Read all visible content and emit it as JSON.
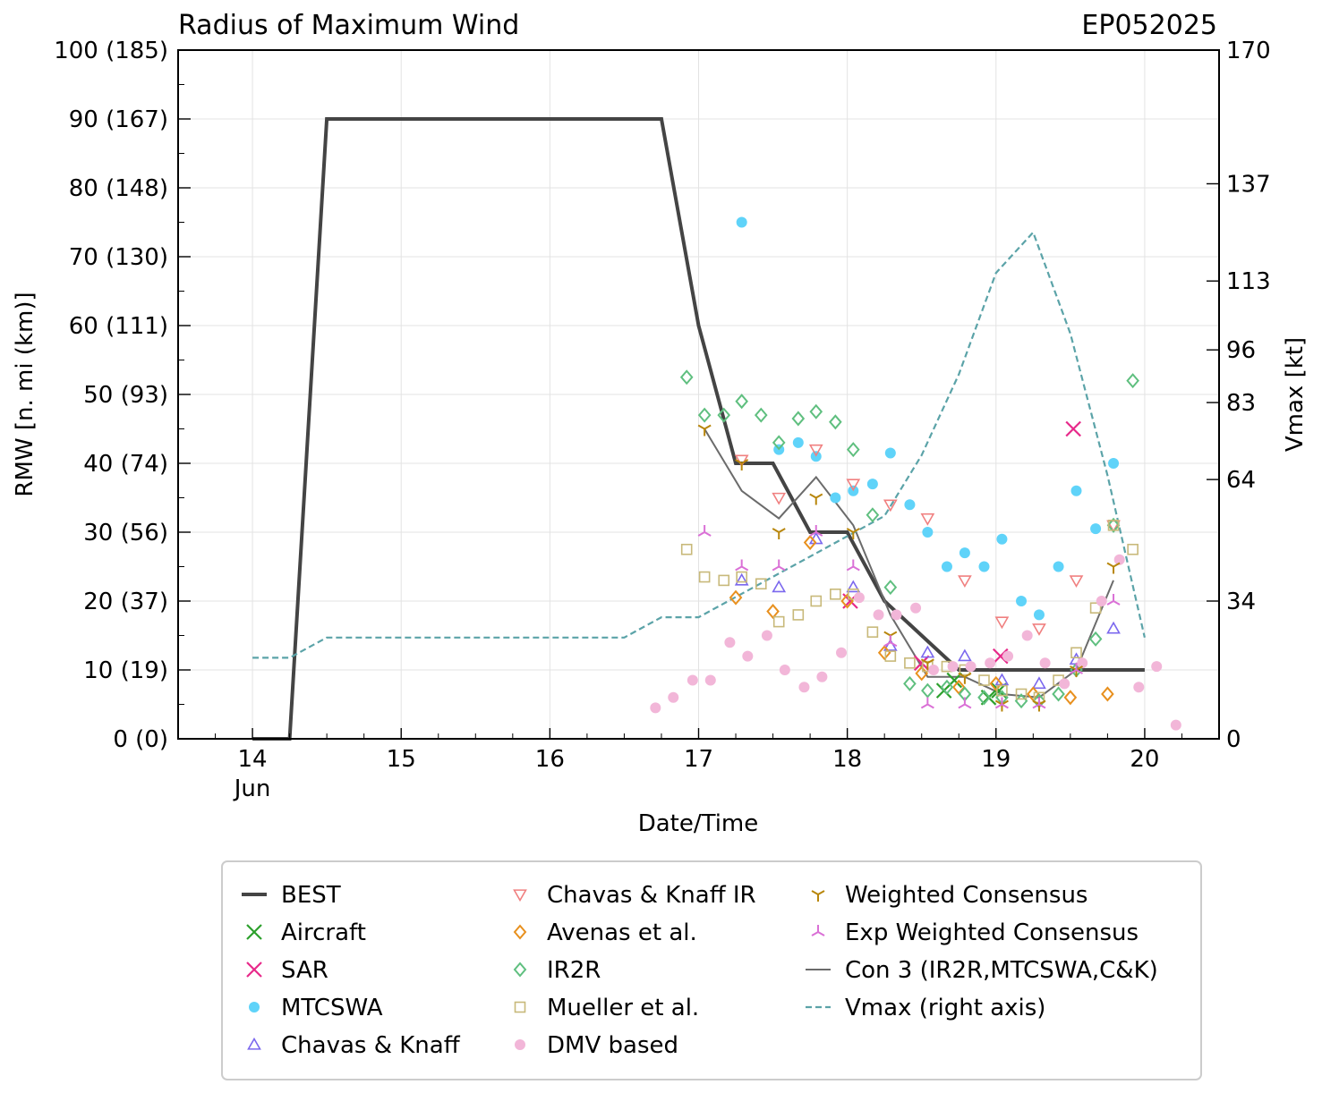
{
  "chart_data": {
    "type": "scatter",
    "title": "Radius of Maximum Wind",
    "storm_id": "EP052025",
    "xlabel": "Date/Time",
    "ylabel": "RMW [n. mi (km)]",
    "ylabel_right": "Vmax [kt]",
    "x_range": [
      13.5,
      20.5
    ],
    "ylim": [
      0,
      100
    ],
    "ylim_right": [
      0,
      170
    ],
    "x_ticks": [
      {
        "value": 14,
        "label": "14",
        "sublabel": "Jun"
      },
      {
        "value": 15,
        "label": "15",
        "sublabel": ""
      },
      {
        "value": 16,
        "label": "16",
        "sublabel": ""
      },
      {
        "value": 17,
        "label": "17",
        "sublabel": ""
      },
      {
        "value": 18,
        "label": "18",
        "sublabel": ""
      },
      {
        "value": 19,
        "label": "19",
        "sublabel": ""
      },
      {
        "value": 20,
        "label": "20",
        "sublabel": ""
      }
    ],
    "y_ticks": [
      {
        "value": 0,
        "label": "0 (0)"
      },
      {
        "value": 10,
        "label": "10 (19)"
      },
      {
        "value": 20,
        "label": "20 (37)"
      },
      {
        "value": 30,
        "label": "30 (56)"
      },
      {
        "value": 40,
        "label": "40 (74)"
      },
      {
        "value": 50,
        "label": "50 (93)"
      },
      {
        "value": 60,
        "label": "60 (111)"
      },
      {
        "value": 70,
        "label": "70 (130)"
      },
      {
        "value": 80,
        "label": "80 (148)"
      },
      {
        "value": 90,
        "label": "90 (167)"
      },
      {
        "value": 100,
        "label": "100 (185)"
      }
    ],
    "y_right_ticks": [
      {
        "value": 0,
        "label": "0"
      },
      {
        "value": 34,
        "label": "34"
      },
      {
        "value": 64,
        "label": "64"
      },
      {
        "value": 83,
        "label": "83"
      },
      {
        "value": 96,
        "label": "96"
      },
      {
        "value": 113,
        "label": "113"
      },
      {
        "value": 137,
        "label": "137"
      },
      {
        "value": 170,
        "label": "170"
      }
    ],
    "series": [
      {
        "name": "BEST",
        "kind": "line",
        "color": "#444444",
        "points": [
          [
            14.0,
            0
          ],
          [
            14.25,
            0
          ],
          [
            14.5,
            90
          ],
          [
            16.75,
            90
          ],
          [
            17.0,
            60
          ],
          [
            17.25,
            40
          ],
          [
            17.5,
            40
          ],
          [
            17.75,
            30
          ],
          [
            18.0,
            30
          ],
          [
            18.25,
            20
          ],
          [
            18.5,
            15
          ],
          [
            18.75,
            10
          ],
          [
            19.0,
            10
          ],
          [
            19.25,
            10
          ],
          [
            19.5,
            10
          ],
          [
            19.75,
            10
          ],
          [
            20.0,
            10
          ]
        ]
      },
      {
        "name": "Aircraft",
        "kind": "marker",
        "marker": "x",
        "color": "#2ca02c",
        "points": [
          [
            18.65,
            7
          ],
          [
            18.72,
            8.5
          ],
          [
            18.95,
            6
          ],
          [
            19.02,
            7
          ]
        ]
      },
      {
        "name": "SAR",
        "kind": "marker",
        "marker": "x",
        "color": "#e7298a",
        "points": [
          [
            18.02,
            20
          ],
          [
            18.5,
            11
          ],
          [
            19.03,
            12
          ],
          [
            19.52,
            45
          ]
        ]
      },
      {
        "name": "MTCSWA",
        "kind": "marker",
        "marker": "circle",
        "color": "#5fd3f9",
        "points": [
          [
            17.29,
            75
          ],
          [
            17.54,
            42
          ],
          [
            17.67,
            43
          ],
          [
            17.79,
            41
          ],
          [
            17.92,
            35
          ],
          [
            18.04,
            36
          ],
          [
            18.17,
            37
          ],
          [
            18.29,
            41.5
          ],
          [
            18.42,
            34
          ],
          [
            18.54,
            30
          ],
          [
            18.67,
            25
          ],
          [
            18.79,
            27
          ],
          [
            18.92,
            25
          ],
          [
            19.04,
            29
          ],
          [
            19.17,
            20
          ],
          [
            19.29,
            18
          ],
          [
            19.42,
            25
          ],
          [
            19.54,
            36
          ],
          [
            19.67,
            30.5
          ],
          [
            19.79,
            40
          ]
        ]
      },
      {
        "name": "Chavas & Knaff",
        "kind": "marker",
        "marker": "triangle-up",
        "color": "#7b68ee",
        "points": [
          [
            17.29,
            23
          ],
          [
            17.54,
            22
          ],
          [
            17.79,
            29
          ],
          [
            18.04,
            22
          ],
          [
            18.29,
            13.5
          ],
          [
            18.54,
            12.5
          ],
          [
            18.79,
            12
          ],
          [
            19.04,
            8.5
          ],
          [
            19.29,
            8
          ],
          [
            19.54,
            11.5
          ],
          [
            19.79,
            16
          ]
        ]
      },
      {
        "name": "Chavas & Knaff IR",
        "kind": "marker",
        "marker": "triangle-down",
        "color": "#f08080",
        "points": [
          [
            17.29,
            40.5
          ],
          [
            17.54,
            35
          ],
          [
            17.79,
            42
          ],
          [
            18.04,
            37
          ],
          [
            18.29,
            34
          ],
          [
            18.54,
            32
          ],
          [
            18.79,
            23
          ],
          [
            19.04,
            17
          ],
          [
            19.29,
            16
          ],
          [
            19.54,
            23
          ],
          [
            19.79,
            31
          ]
        ]
      },
      {
        "name": "Avenas et al.",
        "kind": "marker",
        "marker": "diamond",
        "color": "#e8901e",
        "points": [
          [
            17.25,
            20.5
          ],
          [
            17.5,
            18.5
          ],
          [
            17.75,
            28.5
          ],
          [
            18.0,
            20
          ],
          [
            18.25,
            12.5
          ],
          [
            18.5,
            9.5
          ],
          [
            18.75,
            7.5
          ],
          [
            19.0,
            8
          ],
          [
            19.25,
            6.5
          ],
          [
            19.5,
            6
          ],
          [
            19.75,
            6.5
          ]
        ]
      },
      {
        "name": "IR2R",
        "kind": "marker",
        "marker": "diamond",
        "color": "#5fbf7f",
        "points": [
          [
            16.92,
            52.5
          ],
          [
            17.04,
            47
          ],
          [
            17.17,
            47
          ],
          [
            17.29,
            49
          ],
          [
            17.42,
            47
          ],
          [
            17.54,
            43
          ],
          [
            17.67,
            46.5
          ],
          [
            17.79,
            47.5
          ],
          [
            17.92,
            46
          ],
          [
            18.04,
            42
          ],
          [
            18.17,
            32.5
          ],
          [
            18.29,
            22
          ],
          [
            18.42,
            8
          ],
          [
            18.54,
            7
          ],
          [
            18.67,
            7.5
          ],
          [
            18.79,
            6.5
          ],
          [
            18.92,
            6
          ],
          [
            19.04,
            6
          ],
          [
            19.17,
            5.5
          ],
          [
            19.29,
            5.5
          ],
          [
            19.42,
            6.5
          ],
          [
            19.54,
            10
          ],
          [
            19.67,
            14.5
          ],
          [
            19.79,
            31
          ],
          [
            19.92,
            52
          ]
        ]
      },
      {
        "name": "Mueller et al.",
        "kind": "marker",
        "marker": "square",
        "color": "#c8b97a",
        "points": [
          [
            16.92,
            27.5
          ],
          [
            17.04,
            23.5
          ],
          [
            17.17,
            23
          ],
          [
            17.29,
            23.5
          ],
          [
            17.42,
            22.5
          ],
          [
            17.54,
            17
          ],
          [
            17.67,
            18
          ],
          [
            17.79,
            20
          ],
          [
            17.92,
            21
          ],
          [
            18.04,
            21
          ],
          [
            18.17,
            15.5
          ],
          [
            18.29,
            12
          ],
          [
            18.42,
            11
          ],
          [
            18.54,
            10.5
          ],
          [
            18.67,
            10.5
          ],
          [
            18.79,
            10
          ],
          [
            18.92,
            8.5
          ],
          [
            19.04,
            7
          ],
          [
            19.17,
            6.5
          ],
          [
            19.29,
            6
          ],
          [
            19.42,
            8.5
          ],
          [
            19.54,
            12.5
          ],
          [
            19.67,
            19
          ],
          [
            19.79,
            31
          ],
          [
            19.92,
            27.5
          ]
        ]
      },
      {
        "name": "DMV based",
        "kind": "marker",
        "marker": "circle",
        "color": "#f2b6d8",
        "points": [
          [
            16.71,
            4.5
          ],
          [
            16.83,
            6
          ],
          [
            16.96,
            8.5
          ],
          [
            17.08,
            8.5
          ],
          [
            17.21,
            14
          ],
          [
            17.33,
            12
          ],
          [
            17.46,
            15
          ],
          [
            17.58,
            10
          ],
          [
            17.71,
            7.5
          ],
          [
            17.83,
            9
          ],
          [
            17.96,
            12.5
          ],
          [
            18.08,
            20.5
          ],
          [
            18.21,
            18
          ],
          [
            18.33,
            18
          ],
          [
            18.46,
            19
          ],
          [
            18.58,
            10
          ],
          [
            18.71,
            10.5
          ],
          [
            18.83,
            10.5
          ],
          [
            18.96,
            11
          ],
          [
            19.08,
            12
          ],
          [
            19.21,
            15
          ],
          [
            19.33,
            11
          ],
          [
            19.46,
            8
          ],
          [
            19.58,
            11
          ],
          [
            19.71,
            20
          ],
          [
            19.83,
            26
          ],
          [
            19.96,
            7.5
          ],
          [
            20.08,
            10.5
          ],
          [
            20.21,
            2
          ]
        ]
      },
      {
        "name": "Weighted Consensus",
        "kind": "marker",
        "marker": "tri-down",
        "color": "#b8860b",
        "points": [
          [
            17.04,
            45
          ],
          [
            17.29,
            40
          ],
          [
            17.54,
            30
          ],
          [
            17.79,
            35
          ],
          [
            18.04,
            30
          ],
          [
            18.29,
            15
          ],
          [
            18.54,
            11
          ],
          [
            18.79,
            9
          ],
          [
            19.04,
            5
          ],
          [
            19.29,
            5
          ],
          [
            19.54,
            10
          ],
          [
            19.79,
            25
          ]
        ]
      },
      {
        "name": "Exp Weighted Consensus",
        "kind": "marker",
        "marker": "tri-up",
        "color": "#da70d6",
        "points": [
          [
            17.04,
            30
          ],
          [
            17.29,
            25
          ],
          [
            17.54,
            25
          ],
          [
            17.79,
            30
          ],
          [
            18.04,
            25
          ],
          [
            18.29,
            14
          ],
          [
            18.54,
            5
          ],
          [
            18.79,
            5
          ],
          [
            19.04,
            5
          ],
          [
            19.29,
            5
          ],
          [
            19.54,
            10
          ],
          [
            19.79,
            20
          ]
        ]
      },
      {
        "name": "Con 3 (IR2R,MTCSWA,C&K)",
        "kind": "line",
        "color": "#6b6b6b",
        "points": [
          [
            17.04,
            45
          ],
          [
            17.29,
            36
          ],
          [
            17.54,
            32
          ],
          [
            17.79,
            38
          ],
          [
            18.04,
            31
          ],
          [
            18.29,
            18
          ],
          [
            18.54,
            9
          ],
          [
            18.79,
            9
          ],
          [
            19.04,
            6.5
          ],
          [
            19.29,
            6
          ],
          [
            19.54,
            10
          ],
          [
            19.79,
            23
          ]
        ]
      },
      {
        "name": "Vmax (right axis)",
        "kind": "dashed-line",
        "color": "#5ba3a8",
        "axis": "right",
        "points": [
          [
            14.0,
            20
          ],
          [
            14.25,
            20
          ],
          [
            14.5,
            25
          ],
          [
            16.5,
            25
          ],
          [
            16.75,
            30
          ],
          [
            17.0,
            30
          ],
          [
            17.25,
            35
          ],
          [
            17.5,
            40
          ],
          [
            17.75,
            45
          ],
          [
            18.0,
            50
          ],
          [
            18.25,
            55
          ],
          [
            18.5,
            70
          ],
          [
            18.75,
            90
          ],
          [
            19.0,
            115
          ],
          [
            19.25,
            125
          ],
          [
            19.5,
            100
          ],
          [
            19.75,
            65
          ],
          [
            20.0,
            25
          ]
        ]
      }
    ]
  }
}
